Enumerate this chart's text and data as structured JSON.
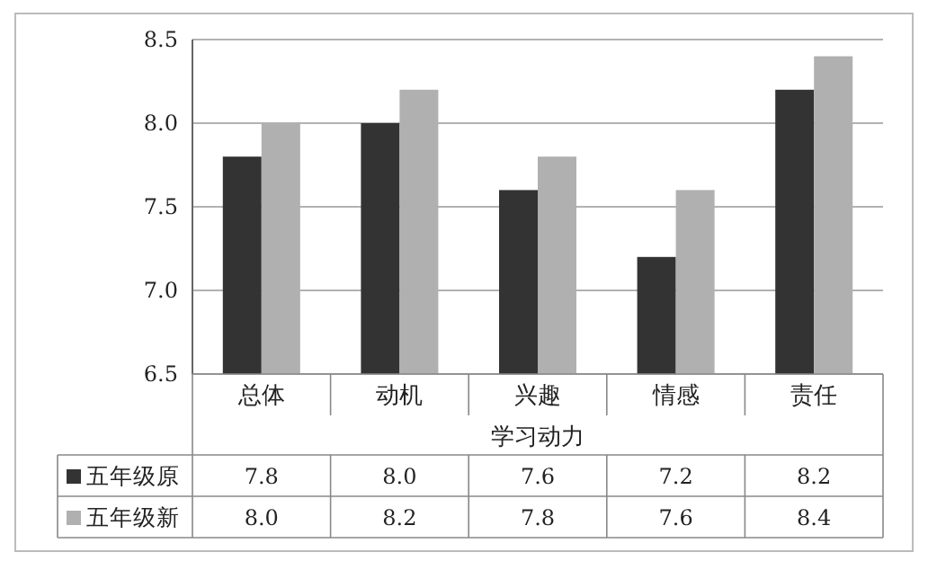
{
  "chart_data": {
    "type": "bar",
    "xlabel": "学习动力",
    "categories": [
      "总体",
      "动机",
      "兴趣",
      "情感",
      "责任"
    ],
    "series": [
      {
        "name": "五年级原",
        "color": "#333333",
        "values": [
          7.8,
          8.0,
          7.6,
          7.2,
          8.2
        ],
        "value_labels": [
          "7.8",
          "8.0",
          "7.6",
          "7.2",
          "8.2"
        ]
      },
      {
        "name": "五年级新",
        "color": "#b0b0b0",
        "values": [
          8.0,
          8.2,
          7.8,
          7.6,
          8.4
        ],
        "value_labels": [
          "8.0",
          "8.2",
          "7.8",
          "7.6",
          "8.4"
        ]
      }
    ],
    "ylim": [
      6.5,
      8.5
    ],
    "yticks": [
      6.5,
      {
        "value": 7,
        "label": "7.0"
      },
      7.5,
      {
        "value": 8,
        "label": "8.0"
      },
      8.5
    ],
    "grid": "y",
    "legend": "bottom"
  }
}
